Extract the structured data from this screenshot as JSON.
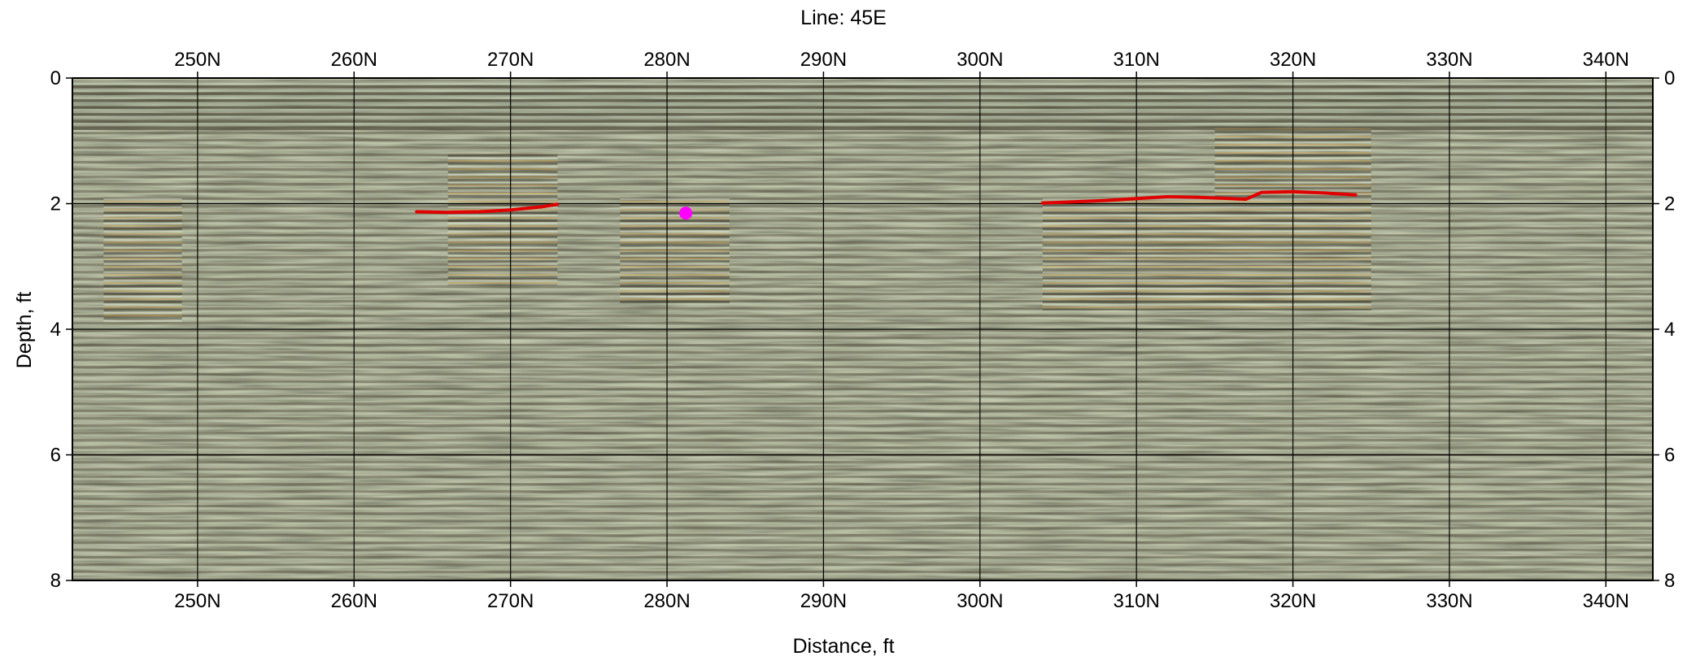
{
  "chart_data": {
    "type": "heatmap",
    "title": "Line: 45E",
    "xlabel": "Distance, ft",
    "ylabel": "Depth, ft",
    "xlim": [
      242,
      343
    ],
    "ylim": [
      0,
      8
    ],
    "y_inverted": true,
    "grid": true,
    "x_ticks": [
      {
        "value": 250,
        "label": "250N"
      },
      {
        "value": 260,
        "label": "260N"
      },
      {
        "value": 270,
        "label": "270N"
      },
      {
        "value": 280,
        "label": "280N"
      },
      {
        "value": 290,
        "label": "290N"
      },
      {
        "value": 300,
        "label": "300N"
      },
      {
        "value": 310,
        "label": "310N"
      },
      {
        "value": 320,
        "label": "320N"
      },
      {
        "value": 330,
        "label": "330N"
      },
      {
        "value": 340,
        "label": "340N"
      }
    ],
    "y_ticks": [
      {
        "value": 0,
        "label": "0"
      },
      {
        "value": 2,
        "label": "2"
      },
      {
        "value": 4,
        "label": "4"
      },
      {
        "value": 6,
        "label": "6"
      },
      {
        "value": 8,
        "label": "8"
      }
    ],
    "interpreted_lines": [
      {
        "color": "#e00000",
        "points": [
          [
            264.0,
            2.13
          ],
          [
            266.0,
            2.14
          ],
          [
            268.0,
            2.13
          ],
          [
            270.0,
            2.1
          ],
          [
            272.0,
            2.05
          ],
          [
            273.0,
            2.01
          ]
        ]
      },
      {
        "color": "#e00000",
        "points": [
          [
            304.0,
            1.99
          ],
          [
            306.0,
            1.97
          ],
          [
            308.0,
            1.95
          ],
          [
            310.0,
            1.92
          ],
          [
            312.0,
            1.89
          ],
          [
            314.0,
            1.9
          ],
          [
            316.0,
            1.92
          ],
          [
            317.0,
            1.93
          ],
          [
            318.0,
            1.82
          ],
          [
            320.0,
            1.81
          ],
          [
            322.0,
            1.83
          ],
          [
            324.0,
            1.86
          ]
        ]
      }
    ],
    "point_markers": [
      {
        "color": "#ff00ff",
        "x": 281.2,
        "y": 2.15
      }
    ],
    "background_colors": {
      "base": "#6b6e55",
      "dark_band": "#3a3526",
      "light_band": "#c8d8c2",
      "warm_band": "#d49b3c"
    }
  }
}
